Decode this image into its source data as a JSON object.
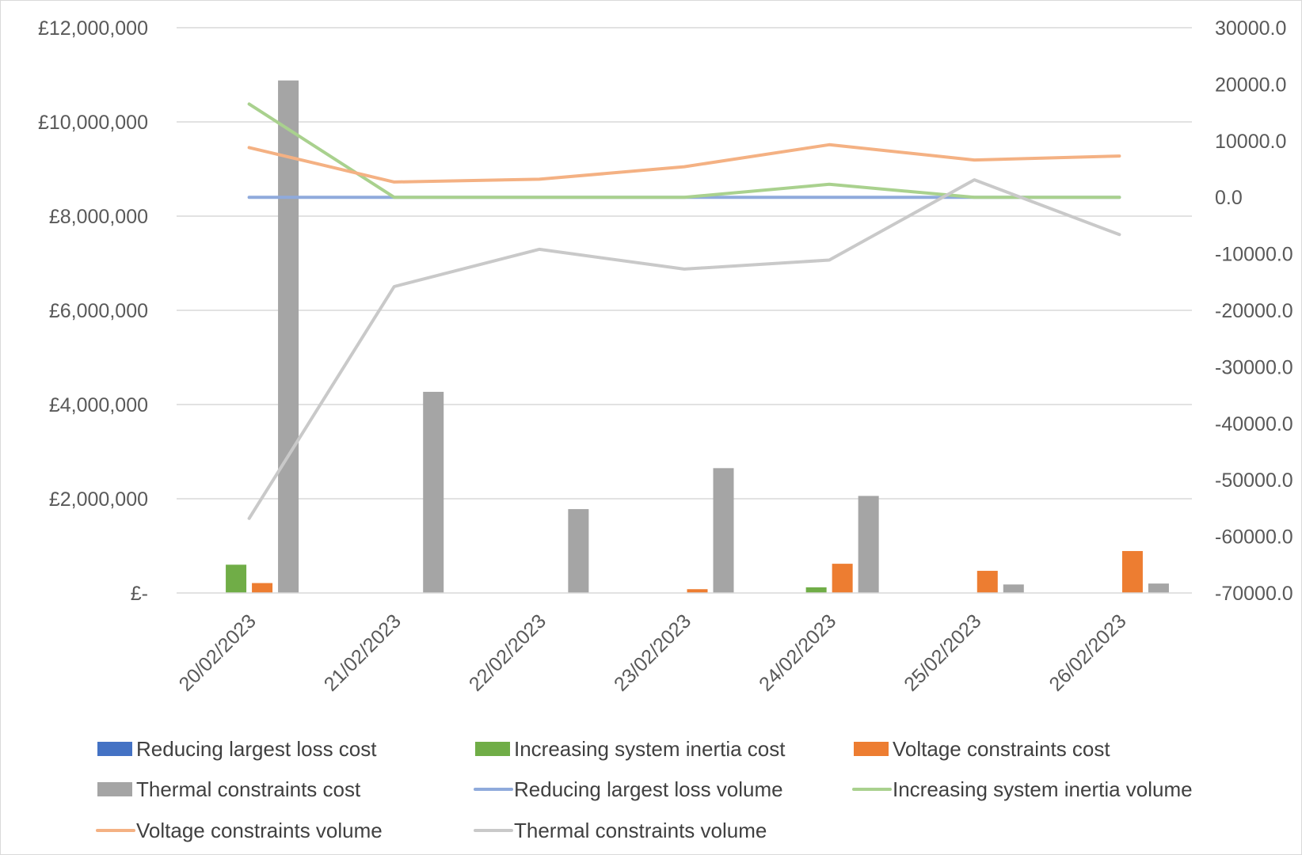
{
  "chart_data": {
    "type": "bar",
    "categories": [
      "20/02/2023",
      "21/02/2023",
      "22/02/2023",
      "23/02/2023",
      "24/02/2023",
      "25/02/2023",
      "26/02/2023"
    ],
    "y_left": {
      "min": 0,
      "max": 12000000,
      "ticks": [
        0,
        2000000,
        4000000,
        6000000,
        8000000,
        10000000,
        12000000
      ],
      "tick_labels": [
        "£-",
        "£2,000,000",
        "£4,000,000",
        "£6,000,000",
        "£8,000,000",
        "£10,000,000",
        "£12,000,000"
      ]
    },
    "y_right": {
      "min": -70000,
      "max": 30000,
      "ticks": [
        -70000,
        -60000,
        -50000,
        -40000,
        -30000,
        -20000,
        -10000,
        0,
        10000,
        20000,
        30000
      ],
      "tick_labels": [
        "-70000.0",
        "-60000.0",
        "-50000.0",
        "-40000.0",
        "-30000.0",
        "-20000.0",
        "-10000.0",
        "0.0",
        "10000.0",
        "20000.0",
        "30000.0"
      ]
    },
    "grid": true,
    "legend_position": "bottom",
    "bar_series": [
      {
        "name": "Reducing largest loss cost",
        "color": "#4472C4",
        "values": [
          0,
          0,
          0,
          0,
          0,
          0,
          0
        ]
      },
      {
        "name": "Increasing system inertia cost",
        "color": "#70AD47",
        "values": [
          600000,
          0,
          0,
          0,
          120000,
          0,
          0
        ]
      },
      {
        "name": "Voltage constraints cost",
        "color": "#ED7D31",
        "values": [
          210000,
          0,
          0,
          80000,
          620000,
          470000,
          890000
        ]
      },
      {
        "name": "Thermal constraints cost",
        "color": "#A5A5A5",
        "values": [
          10880000,
          4270000,
          1780000,
          2650000,
          2060000,
          180000,
          200000
        ]
      }
    ],
    "line_series": [
      {
        "name": "Reducing largest loss volume",
        "color": "#8FAADC",
        "values": [
          0,
          0,
          0,
          0,
          0,
          0,
          0
        ]
      },
      {
        "name": "Increasing system inertia volume",
        "color": "#A9D18E",
        "values": [
          16500,
          0,
          0,
          0,
          2300,
          0,
          0
        ]
      },
      {
        "name": "Voltage constraints volume",
        "color": "#F4B183",
        "values": [
          8800,
          2700,
          3200,
          5400,
          9300,
          6600,
          7300
        ]
      },
      {
        "name": "Thermal constraints volume",
        "color": "#C9C9C9",
        "values": [
          -56800,
          -15800,
          -9200,
          -12700,
          -11100,
          3100,
          -6600
        ]
      }
    ]
  }
}
